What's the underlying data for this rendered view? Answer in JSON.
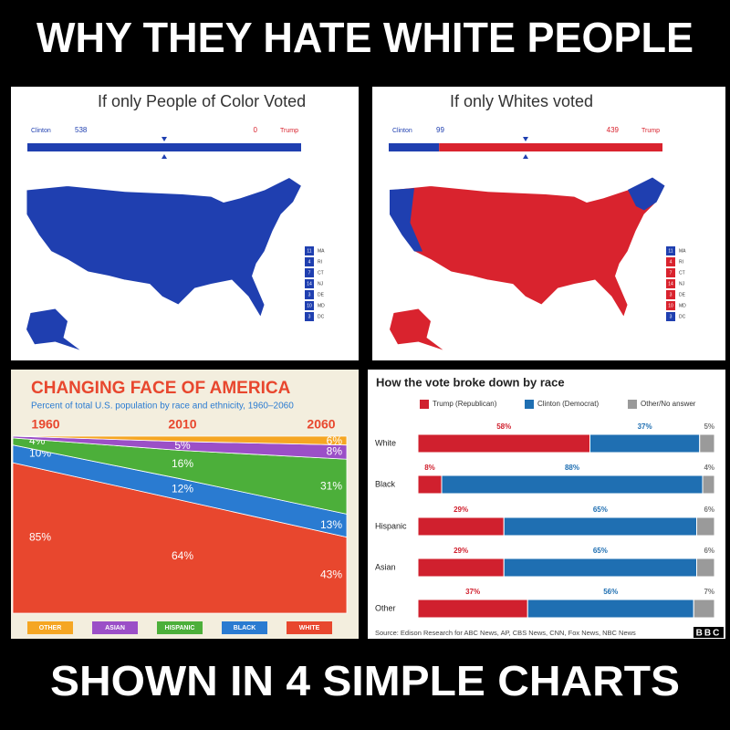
{
  "header": {
    "title": "WHY THEY HATE WHITE PEOPLE"
  },
  "footer": {
    "title": "SHOWN IN 4 SIMPLE CHARTS"
  },
  "maps": [
    {
      "title": "If only People of Color Voted",
      "left_label": "Clinton",
      "left_value": 538,
      "right_value": 0,
      "right_label": "Trump",
      "left_color": "#1f3fb0",
      "right_color": "#d9232e",
      "map_color": "#1f3fb0",
      "legend": [
        {
          "code": "MA",
          "number": "11",
          "color": "#1f3fb0"
        },
        {
          "code": "RI",
          "number": "4",
          "color": "#1f3fb0"
        },
        {
          "code": "CT",
          "number": "7",
          "color": "#1f3fb0"
        },
        {
          "code": "NJ",
          "number": "14",
          "color": "#1f3fb0"
        },
        {
          "code": "DE",
          "number": "3",
          "color": "#1f3fb0"
        },
        {
          "code": "MD",
          "number": "10",
          "color": "#1f3fb0"
        },
        {
          "code": "DC",
          "number": "3",
          "color": "#1f3fb0"
        }
      ]
    },
    {
      "title": "If only Whites voted",
      "left_label": "Clinton",
      "left_value": 99,
      "right_value": 439,
      "right_label": "Trump",
      "left_color": "#1f3fb0",
      "right_color": "#d9232e",
      "map_color": "#d9232e",
      "legend": [
        {
          "code": "MA",
          "number": "11",
          "color": "#1f3fb0"
        },
        {
          "code": "RI",
          "number": "4",
          "color": "#d9232e"
        },
        {
          "code": "CT",
          "number": "7",
          "color": "#d9232e"
        },
        {
          "code": "NJ",
          "number": "14",
          "color": "#d9232e"
        },
        {
          "code": "DE",
          "number": "3",
          "color": "#d9232e"
        },
        {
          "code": "MD",
          "number": "10",
          "color": "#d9232e"
        },
        {
          "code": "DC",
          "number": "3",
          "color": "#1f3fb0"
        }
      ]
    }
  ],
  "chart_data": [
    {
      "type": "stacked_area",
      "title": "CHANGING FACE OF AMERICA",
      "subtitle": "Percent of total U.S. population by race and ethnicity, 1960–2060",
      "categories": [
        "1960",
        "2010",
        "2060"
      ],
      "ylim": [
        0,
        100
      ],
      "series": [
        {
          "name": "WHITE",
          "color": "#e8472e",
          "values": [
            85,
            64,
            43
          ],
          "value_labels": [
            "85%",
            "64%",
            "43%"
          ]
        },
        {
          "name": "BLACK",
          "color": "#2a7bd1",
          "values": [
            10,
            12,
            13
          ],
          "value_labels": [
            "10%",
            "12%",
            "13%"
          ]
        },
        {
          "name": "HISPANIC",
          "color": "#4caf3a",
          "values": [
            4,
            16,
            31
          ],
          "value_labels": [
            "4%",
            "16%",
            "31%"
          ]
        },
        {
          "name": "ASIAN",
          "color": "#9b4fc7",
          "values": [
            1,
            5,
            8
          ],
          "value_labels": [
            null,
            "5%",
            "8%"
          ]
        },
        {
          "name": "OTHER",
          "color": "#f5a623",
          "values": [
            0,
            3,
            6
          ],
          "value_labels": [
            null,
            null,
            "6%"
          ]
        }
      ]
    },
    {
      "type": "stacked_hbar",
      "title": "How the vote broke down by race",
      "categories": [
        "White",
        "Black",
        "Hispanic",
        "Asian",
        "Other"
      ],
      "xlim": [
        0,
        100
      ],
      "series": [
        {
          "name": "Trump (Republican)",
          "color": "#d0202e",
          "values": [
            58,
            8,
            29,
            29,
            37
          ],
          "value_labels": [
            "58%",
            "8%",
            "29%",
            "29%",
            "37%"
          ]
        },
        {
          "name": "Clinton (Democrat)",
          "color": "#1f6fb2",
          "values": [
            37,
            88,
            65,
            65,
            56
          ],
          "value_labels": [
            "37%",
            "88%",
            "65%",
            "65%",
            "56%"
          ]
        },
        {
          "name": "Other/No answer",
          "color": "#9a9a9a",
          "values": [
            5,
            4,
            6,
            6,
            7
          ],
          "value_labels": [
            "5%",
            "4%",
            "6%",
            "6%",
            "7%"
          ]
        }
      ],
      "source": "Source: Edison Research for ABC News, AP, CBS News, CNN, Fox News, NBC News",
      "logo": "BBC"
    }
  ]
}
